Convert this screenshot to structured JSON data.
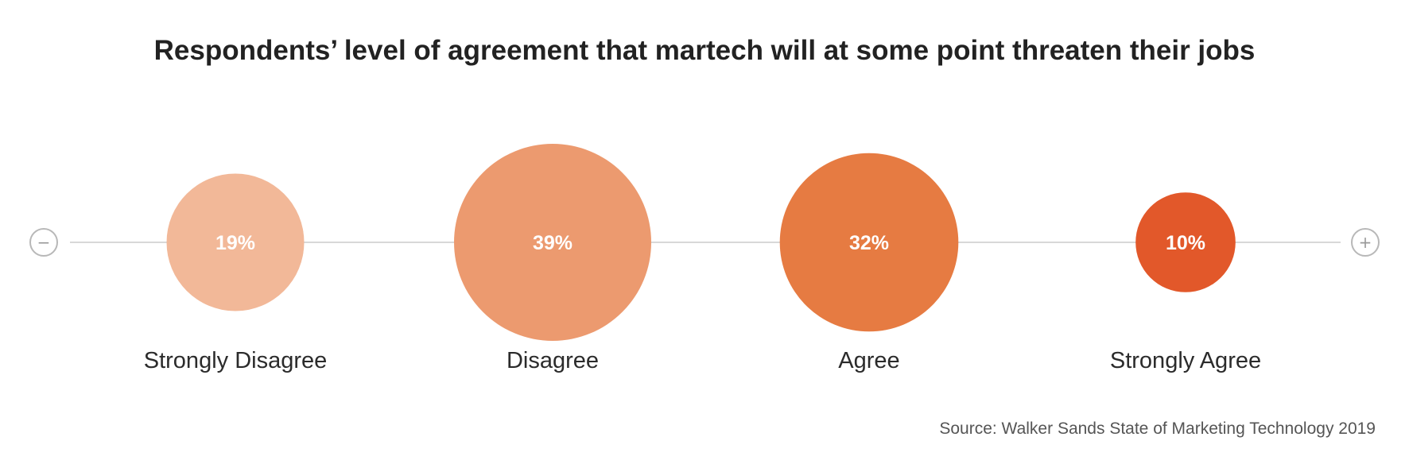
{
  "chart_data": {
    "type": "bubble",
    "title": "Respondents’ level of agreement that martech will at some point threaten their jobs",
    "categories": [
      "Strongly Disagree",
      "Disagree",
      "Agree",
      "Strongly Agree"
    ],
    "values": [
      19,
      39,
      32,
      10
    ],
    "value_labels": [
      "19%",
      "39%",
      "32%",
      "10%"
    ],
    "unit": "%",
    "colors": [
      "#f2b898",
      "#ec9a6f",
      "#e67b42",
      "#e2582a"
    ],
    "scale_ends": {
      "left": "−",
      "right": "+"
    },
    "source": "Source: Walker Sands State of Marketing Technology 2019"
  }
}
